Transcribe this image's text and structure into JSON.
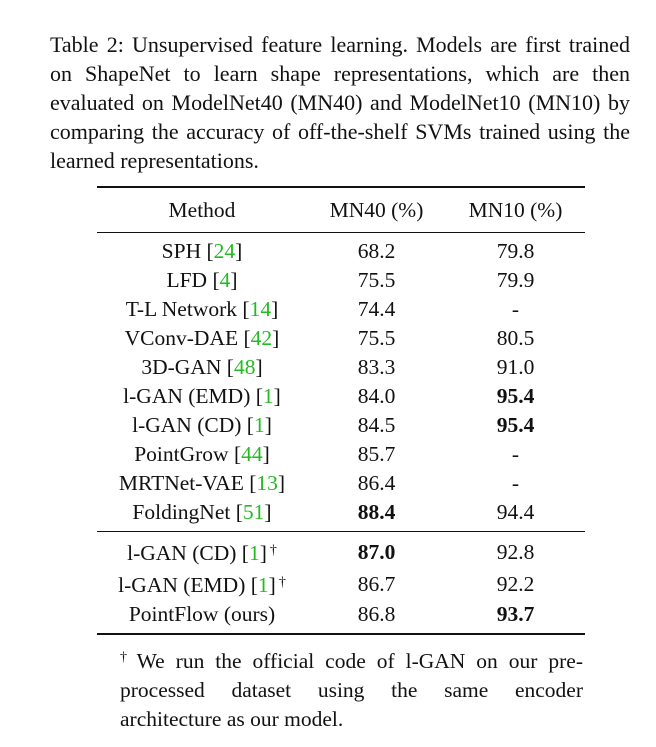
{
  "caption": "Table 2: Unsupervised feature learning. Models are first trained on ShapeNet to learn shape representations, which are then evaluated on ModelNet40 (MN40) and ModelNet10 (MN10) by comparing the accuracy of off-the-shelf SVMs trained using the learned representations.",
  "headers": [
    "Method",
    "MN40 (%)",
    "MN10 (%)"
  ],
  "group1": [
    {
      "name": "SPH",
      "ref": "24",
      "mn40": "68.2",
      "mn10": "79.8",
      "mn40_bold": false,
      "mn10_bold": false
    },
    {
      "name": "LFD",
      "ref": "4",
      "mn40": "75.5",
      "mn10": "79.9",
      "mn40_bold": false,
      "mn10_bold": false
    },
    {
      "name": "T-L Network",
      "ref": "14",
      "mn40": "74.4",
      "mn10": "-",
      "mn40_bold": false,
      "mn10_bold": false
    },
    {
      "name": "VConv-DAE",
      "ref": "42",
      "mn40": "75.5",
      "mn10": "80.5",
      "mn40_bold": false,
      "mn10_bold": false
    },
    {
      "name": "3D-GAN",
      "ref": "48",
      "mn40": "83.3",
      "mn10": "91.0",
      "mn40_bold": false,
      "mn10_bold": false
    },
    {
      "name": "l-GAN (EMD)",
      "ref": "1",
      "mn40": "84.0",
      "mn10": "95.4",
      "mn40_bold": false,
      "mn10_bold": true
    },
    {
      "name": "l-GAN (CD)",
      "ref": "1",
      "mn40": "84.5",
      "mn10": "95.4",
      "mn40_bold": false,
      "mn10_bold": true
    },
    {
      "name": "PointGrow",
      "ref": "44",
      "mn40": "85.7",
      "mn10": "-",
      "mn40_bold": false,
      "mn10_bold": false
    },
    {
      "name": "MRTNet-VAE",
      "ref": "13",
      "mn40": "86.4",
      "mn10": "-",
      "mn40_bold": false,
      "mn10_bold": false
    },
    {
      "name": "FoldingNet",
      "ref": "51",
      "mn40": "88.4",
      "mn10": "94.4",
      "mn40_bold": true,
      "mn10_bold": false
    }
  ],
  "group2": [
    {
      "name": "l-GAN (CD)",
      "ref": "1",
      "dagger": "†",
      "mn40": "87.0",
      "mn10": "92.8",
      "mn40_bold": true,
      "mn10_bold": false
    },
    {
      "name": "l-GAN (EMD)",
      "ref": "1",
      "dagger": "†",
      "mn40": "86.7",
      "mn10": "92.2",
      "mn40_bold": false,
      "mn10_bold": false
    },
    {
      "name": "PointFlow (ours)",
      "ref": "",
      "dagger": "",
      "mn40": "86.8",
      "mn10": "93.7",
      "mn40_bold": false,
      "mn10_bold": true
    }
  ],
  "footnote": {
    "mark": "†",
    "text": "We run the official code of l-GAN on our pre-processed dataset using the same encoder architecture as our model."
  }
}
